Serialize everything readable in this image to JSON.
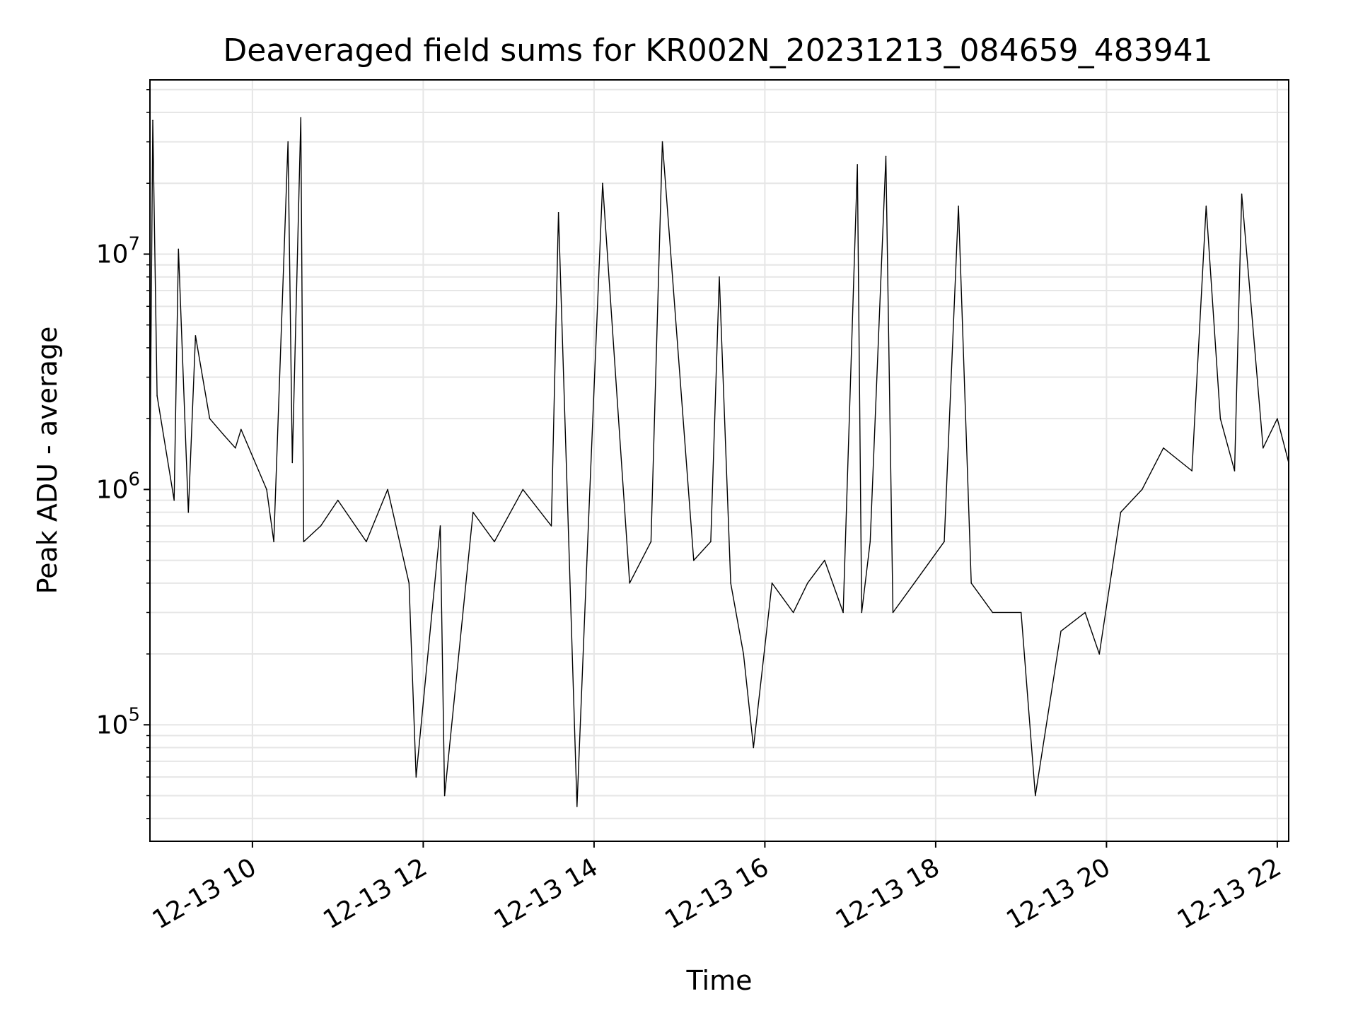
{
  "chart_data": {
    "type": "line",
    "title": "Deaveraged field sums for KR002N_20231213_084659_483941",
    "xlabel": "Time",
    "ylabel": "Peak ADU - average",
    "yscale": "log",
    "grid": true,
    "line_color": "#000000",
    "grid_color": "#e6e6e6",
    "xlim": [
      "2023-12-13 08:48",
      "2023-12-13 22:08"
    ],
    "ylim": [
      32000,
      55000000
    ],
    "x_ticks": [
      {
        "value": "2023-12-13 10:00",
        "label": "12-13 10"
      },
      {
        "value": "2023-12-13 12:00",
        "label": "12-13 12"
      },
      {
        "value": "2023-12-13 14:00",
        "label": "12-13 14"
      },
      {
        "value": "2023-12-13 16:00",
        "label": "12-13 16"
      },
      {
        "value": "2023-12-13 18:00",
        "label": "12-13 18"
      },
      {
        "value": "2023-12-13 20:00",
        "label": "12-13 20"
      },
      {
        "value": "2023-12-13 22:00",
        "label": "12-13 22"
      }
    ],
    "y_ticks": [
      {
        "value": 100000,
        "base": "10",
        "exp": "5"
      },
      {
        "value": 1000000,
        "base": "10",
        "exp": "6"
      },
      {
        "value": 10000000,
        "base": "10",
        "exp": "7"
      }
    ],
    "series": [
      {
        "x": [
          "2023-12-13 08:48",
          "2023-12-13 08:50",
          "2023-12-13 08:53",
          "2023-12-13 09:05",
          "2023-12-13 09:08",
          "2023-12-13 09:15",
          "2023-12-13 09:20",
          "2023-12-13 09:30",
          "2023-12-13 09:40",
          "2023-12-13 09:48",
          "2023-12-13 09:52",
          "2023-12-13 10:10",
          "2023-12-13 10:15",
          "2023-12-13 10:25",
          "2023-12-13 10:28",
          "2023-12-13 10:34",
          "2023-12-13 10:36",
          "2023-12-13 10:48",
          "2023-12-13 11:00",
          "2023-12-13 11:20",
          "2023-12-13 11:35",
          "2023-12-13 11:50",
          "2023-12-13 11:55",
          "2023-12-13 12:12",
          "2023-12-13 12:15",
          "2023-12-13 12:35",
          "2023-12-13 12:50",
          "2023-12-13 13:10",
          "2023-12-13 13:30",
          "2023-12-13 13:35",
          "2023-12-13 13:48",
          "2023-12-13 13:55",
          "2023-12-13 14:06",
          "2023-12-13 14:25",
          "2023-12-13 14:40",
          "2023-12-13 14:48",
          "2023-12-13 15:10",
          "2023-12-13 15:22",
          "2023-12-13 15:28",
          "2023-12-13 15:36",
          "2023-12-13 15:45",
          "2023-12-13 15:52",
          "2023-12-13 16:05",
          "2023-12-13 16:20",
          "2023-12-13 16:30",
          "2023-12-13 16:42",
          "2023-12-13 16:55",
          "2023-12-13 17:05",
          "2023-12-13 17:08",
          "2023-12-13 17:14",
          "2023-12-13 17:25",
          "2023-12-13 17:30",
          "2023-12-13 17:45",
          "2023-12-13 18:06",
          "2023-12-13 18:16",
          "2023-12-13 18:25",
          "2023-12-13 18:40",
          "2023-12-13 19:00",
          "2023-12-13 19:10",
          "2023-12-13 19:28",
          "2023-12-13 19:45",
          "2023-12-13 19:55",
          "2023-12-13 20:10",
          "2023-12-13 20:25",
          "2023-12-13 20:40",
          "2023-12-13 21:00",
          "2023-12-13 21:10",
          "2023-12-13 21:20",
          "2023-12-13 21:30",
          "2023-12-13 21:35",
          "2023-12-13 21:50",
          "2023-12-13 22:00",
          "2023-12-13 22:08"
        ],
        "y": [
          1200000,
          37000000,
          2500000,
          900000,
          10500000,
          800000,
          4500000,
          2000000,
          1700000,
          1500000,
          1800000,
          1000000,
          600000,
          30000000,
          1300000,
          38000000,
          600000,
          700000,
          900000,
          600000,
          1000000,
          400000,
          60000,
          700000,
          50000,
          800000,
          600000,
          1000000,
          700000,
          15000000,
          45000,
          500000,
          20000000,
          400000,
          600000,
          30000000,
          500000,
          600000,
          8000000,
          400000,
          200000,
          80000,
          400000,
          300000,
          400000,
          500000,
          300000,
          24000000,
          300000,
          600000,
          26000000,
          300000,
          400000,
          600000,
          16000000,
          400000,
          300000,
          300000,
          50000,
          250000,
          300000,
          200000,
          800000,
          1000000,
          1500000,
          1200000,
          16000000,
          2000000,
          1200000,
          18000000,
          1500000,
          2000000,
          1300000
        ]
      }
    ]
  }
}
